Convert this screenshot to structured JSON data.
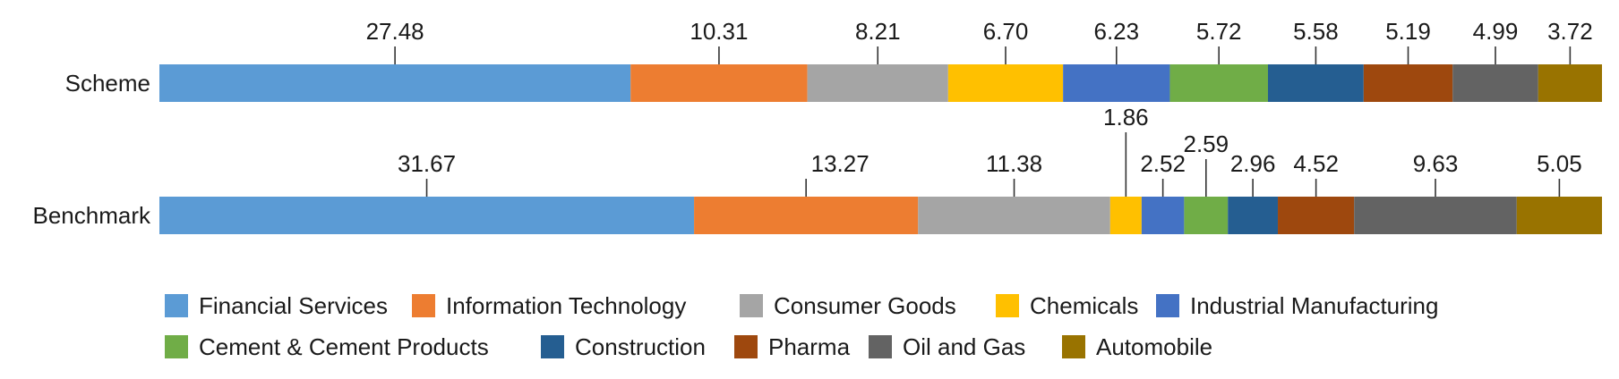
{
  "chart_data": {
    "type": "bar",
    "orientation": "horizontal",
    "stacked": true,
    "categories": [
      "Scheme",
      "Benchmark"
    ],
    "series": [
      {
        "name": "Financial Services",
        "color": "#5B9BD5",
        "values": [
          27.48,
          31.67
        ]
      },
      {
        "name": "Information Technology",
        "color": "#ED7D31",
        "values": [
          10.31,
          13.27
        ]
      },
      {
        "name": "Consumer Goods",
        "color": "#A5A5A5",
        "values": [
          8.21,
          11.38
        ]
      },
      {
        "name": "Chemicals",
        "color": "#FFC000",
        "values": [
          6.7,
          1.86
        ]
      },
      {
        "name": "Industrial Manufacturing",
        "color": "#4472C4",
        "values": [
          6.23,
          2.52
        ]
      },
      {
        "name": "Cement & Cement Products",
        "color": "#70AD47",
        "values": [
          5.72,
          2.59
        ]
      },
      {
        "name": "Construction",
        "color": "#255E91",
        "values": [
          5.58,
          2.96
        ]
      },
      {
        "name": "Pharma",
        "color": "#9E480E",
        "values": [
          5.19,
          4.52
        ]
      },
      {
        "name": "Oil and Gas",
        "color": "#636363",
        "values": [
          4.99,
          9.63
        ]
      },
      {
        "name": "Automobile",
        "color": "#997300",
        "values": [
          3.72,
          5.05
        ]
      }
    ],
    "value_labels": [
      [
        "27.48",
        "10.31",
        "8.21",
        "6.70",
        "6.23",
        "5.72",
        "5.58",
        "5.19",
        "4.99",
        "3.72"
      ],
      [
        "31.67",
        "13.27",
        "11.38",
        "1.86",
        "2.52",
        "2.59",
        "2.96",
        "4.52",
        "9.63",
        "5.05"
      ]
    ],
    "title": "",
    "xlabel": "",
    "ylabel": "",
    "grid": false,
    "legend_position": "bottom"
  }
}
